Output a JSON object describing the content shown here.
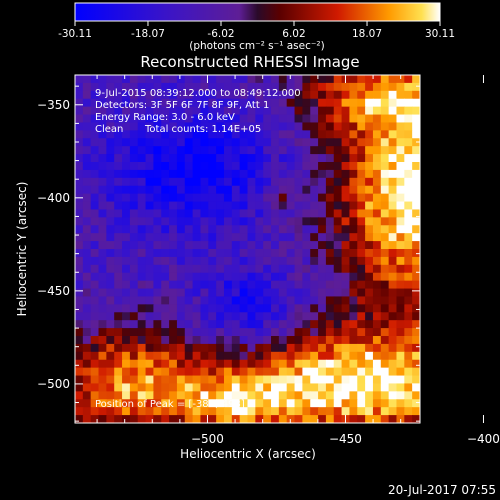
{
  "chart_data": {
    "type": "heatmap",
    "title": "Reconstructed RHESSI Image",
    "xlabel": "Heliocentric X (arcsec)",
    "ylabel": "Heliocentric Y (arcsec)",
    "xlim": [
      -548,
      -423
    ],
    "ylim": [
      -521,
      -334
    ],
    "x_ticks": [
      -500,
      -450,
      -400
    ],
    "y_ticks": [
      -500,
      -450,
      -400,
      -350
    ],
    "colorbar": {
      "min": -30.11,
      "max": 30.11,
      "ticks": [
        "-30.11",
        "-18.07",
        "-6.02",
        "6.02",
        "18.07",
        "30.11"
      ],
      "units": "(photons cm⁻² s⁻¹ asec⁻²)"
    },
    "annotations": {
      "time": "9-Jul-2015 08:39:12.000 to 08:49:12.000",
      "detectors": "Detectors: 3F 5F 6F 7F 8F 9F, Att 1",
      "energy": "Energy Range: 3.0 - 6.0 keV",
      "method": "Clean",
      "counts": "Total counts: 1.14E+05",
      "peak": "Position of Peak = [-383,-493]"
    },
    "grid_cols": 44,
    "grid_rows": 44,
    "peak_position": [
      -383,
      -493
    ]
  },
  "footer": {
    "timestamp": "20-Jul-2017 07:55"
  }
}
